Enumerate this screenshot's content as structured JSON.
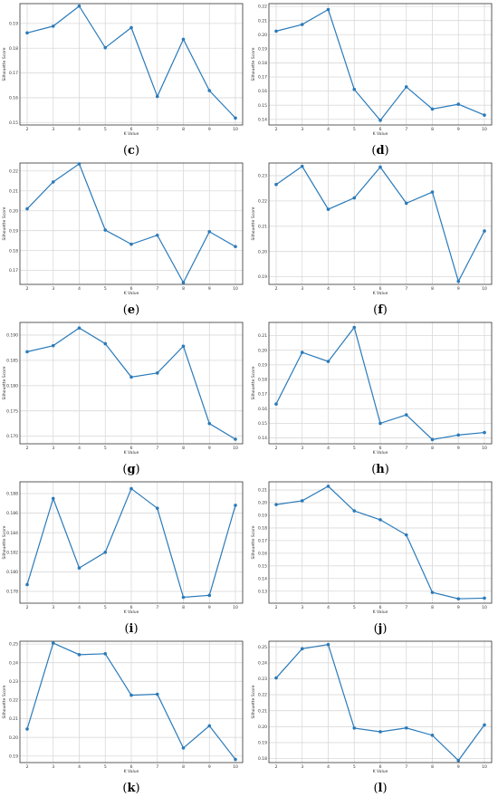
{
  "colors": {
    "series": "#2a7ab9",
    "grid": "#d9d9d9",
    "axis": "#333333"
  },
  "chart_data": [
    {
      "type": "line",
      "caption": "(c)",
      "xlabel": "K Value",
      "ylabel": "Silhouette Score",
      "x": [
        2,
        3,
        4,
        5,
        6,
        7,
        8,
        9,
        10
      ],
      "xticks": [
        "2",
        "3",
        "4",
        "5",
        "6",
        "7",
        "8",
        "9",
        "10"
      ],
      "ylim": [
        0.149,
        0.198
      ],
      "yticks": [
        0.15,
        0.16,
        0.17,
        0.18,
        0.19
      ],
      "yticklabels": [
        "0.15",
        "0.16",
        "0.17",
        "0.18",
        "0.19"
      ],
      "series": [
        {
          "values": [
            0.1862,
            0.1889,
            0.197,
            0.1802,
            0.1883,
            0.1605,
            0.1836,
            0.1629,
            0.1518
          ]
        }
      ]
    },
    {
      "type": "line",
      "caption": "(d)",
      "xlabel": "K Value",
      "ylabel": "Silhouette Score",
      "x": [
        2,
        3,
        4,
        5,
        6,
        7,
        8,
        9,
        10
      ],
      "xticks": [
        "2",
        "3",
        "4",
        "5",
        "6",
        "7",
        "8",
        "9",
        "10"
      ],
      "ylim": [
        0.136,
        0.222
      ],
      "yticks": [
        0.14,
        0.15,
        0.16,
        0.17,
        0.18,
        0.19,
        0.2,
        0.21,
        0.22
      ],
      "yticklabels": [
        "0.14",
        "0.15",
        "0.16",
        "0.17",
        "0.18",
        "0.19",
        "0.20",
        "0.21",
        "0.22"
      ],
      "series": [
        {
          "values": [
            0.2025,
            0.2072,
            0.2178,
            0.1612,
            0.1393,
            0.163,
            0.1473,
            0.1507,
            0.143
          ]
        }
      ]
    },
    {
      "type": "line",
      "caption": "(e)",
      "xlabel": "K Value",
      "ylabel": "Silhouette Score",
      "x": [
        2,
        3,
        4,
        5,
        6,
        7,
        8,
        9,
        10
      ],
      "xticks": [
        "2",
        "3",
        "4",
        "5",
        "6",
        "7",
        "8",
        "9",
        "10"
      ],
      "ylim": [
        0.163,
        0.224
      ],
      "yticks": [
        0.17,
        0.18,
        0.19,
        0.2,
        0.21,
        0.22
      ],
      "yticklabels": [
        "0.17",
        "0.18",
        "0.19",
        "0.20",
        "0.21",
        "0.22"
      ],
      "series": [
        {
          "values": [
            0.201,
            0.2145,
            0.2236,
            0.1903,
            0.1832,
            0.1877,
            0.1639,
            0.1895,
            0.182
          ]
        }
      ]
    },
    {
      "type": "line",
      "caption": "(f)",
      "xlabel": "K Value",
      "ylabel": "Silhouette Score",
      "x": [
        2,
        3,
        4,
        5,
        6,
        7,
        8,
        9,
        10
      ],
      "xticks": [
        "2",
        "3",
        "4",
        "5",
        "6",
        "7",
        "8",
        "9",
        "10"
      ],
      "ylim": [
        0.187,
        0.235
      ],
      "yticks": [
        0.19,
        0.2,
        0.21,
        0.22,
        0.23
      ],
      "yticklabels": [
        "0.19",
        "0.20",
        "0.21",
        "0.22",
        "0.23"
      ],
      "series": [
        {
          "values": [
            0.2265,
            0.2337,
            0.2167,
            0.2212,
            0.2334,
            0.2191,
            0.2235,
            0.1882,
            0.2081
          ]
        }
      ]
    },
    {
      "type": "line",
      "caption": "(g)",
      "xlabel": "K Value",
      "ylabel": "Silhouette Score",
      "x": [
        2,
        3,
        4,
        5,
        6,
        7,
        8,
        9,
        10
      ],
      "xticks": [
        "2",
        "3",
        "4",
        "5",
        "6",
        "7",
        "8",
        "9",
        "10"
      ],
      "ylim": [
        0.1685,
        0.1925
      ],
      "yticks": [
        0.17,
        0.175,
        0.18,
        0.185,
        0.19
      ],
      "yticklabels": [
        "0.170",
        "0.175",
        "0.180",
        "0.185",
        "0.190"
      ],
      "series": [
        {
          "values": [
            0.1867,
            0.1879,
            0.1914,
            0.1883,
            0.1817,
            0.1825,
            0.1878,
            0.1725,
            0.1694
          ]
        }
      ]
    },
    {
      "type": "line",
      "caption": "(h)",
      "xlabel": "K Value",
      "ylabel": "Silhouette Score",
      "x": [
        2,
        3,
        4,
        5,
        6,
        7,
        8,
        9,
        10
      ],
      "xticks": [
        "2",
        "3",
        "4",
        "5",
        "6",
        "7",
        "8",
        "9",
        "10"
      ],
      "ylim": [
        0.136,
        0.219
      ],
      "yticks": [
        0.14,
        0.15,
        0.16,
        0.17,
        0.18,
        0.19,
        0.2,
        0.21
      ],
      "yticklabels": [
        "0.14",
        "0.15",
        "0.16",
        "0.17",
        "0.18",
        "0.19",
        "0.20",
        "0.21"
      ],
      "series": [
        {
          "values": [
            0.1632,
            0.1985,
            0.1923,
            0.2156,
            0.15,
            0.1558,
            0.1389,
            0.142,
            0.1437
          ]
        }
      ]
    },
    {
      "type": "line",
      "caption": "(i)",
      "xlabel": "K Value",
      "ylabel": "Silhouette Score",
      "x": [
        2,
        3,
        4,
        5,
        6,
        7,
        8,
        9,
        10
      ],
      "xticks": [
        "2",
        "3",
        "4",
        "5",
        "6",
        "7",
        "8",
        "9",
        "10"
      ],
      "ylim": [
        0.1768,
        0.1892
      ],
      "yticks": [
        0.178,
        0.18,
        0.182,
        0.184,
        0.186,
        0.188
      ],
      "yticklabels": [
        "0.178",
        "0.180",
        "0.182",
        "0.184",
        "0.186",
        "0.188"
      ],
      "series": [
        {
          "values": [
            0.1787,
            0.1875,
            0.1804,
            0.182,
            0.1885,
            0.1865,
            0.1774,
            0.1776,
            0.1868
          ]
        }
      ]
    },
    {
      "type": "line",
      "caption": "(j)",
      "xlabel": "K Value",
      "ylabel": "Silhouette Score",
      "x": [
        2,
        3,
        4,
        5,
        6,
        7,
        8,
        9,
        10
      ],
      "xticks": [
        "2",
        "3",
        "4",
        "5",
        "6",
        "7",
        "8",
        "9",
        "10"
      ],
      "ylim": [
        0.1205,
        0.2165
      ],
      "yticks": [
        0.13,
        0.14,
        0.15,
        0.16,
        0.17,
        0.18,
        0.19,
        0.2,
        0.21
      ],
      "yticklabels": [
        "0.13",
        "0.14",
        "0.15",
        "0.16",
        "0.17",
        "0.18",
        "0.19",
        "0.20",
        "0.21"
      ],
      "series": [
        {
          "values": [
            0.1985,
            0.2015,
            0.213,
            0.1935,
            0.1865,
            0.1745,
            0.129,
            0.124,
            0.1245
          ]
        }
      ]
    },
    {
      "type": "line",
      "caption": "(k)",
      "xlabel": "K Value",
      "ylabel": "Silhouette Score",
      "x": [
        2,
        3,
        4,
        5,
        6,
        7,
        8,
        9,
        10
      ],
      "xticks": [
        "2",
        "3",
        "4",
        "5",
        "6",
        "7",
        "8",
        "9",
        "10"
      ],
      "ylim": [
        0.1865,
        0.2515
      ],
      "yticks": [
        0.19,
        0.2,
        0.21,
        0.22,
        0.23,
        0.24,
        0.25
      ],
      "yticklabels": [
        "0.19",
        "0.20",
        "0.21",
        "0.22",
        "0.23",
        "0.24",
        "0.25"
      ],
      "series": [
        {
          "values": [
            0.2045,
            0.2505,
            0.2443,
            0.2448,
            0.2226,
            0.2231,
            0.1943,
            0.2062,
            0.1882
          ]
        }
      ]
    },
    {
      "type": "line",
      "caption": "(l)",
      "xlabel": "K Value",
      "ylabel": "Silhouette Score",
      "x": [
        2,
        3,
        4,
        5,
        6,
        7,
        8,
        9,
        10
      ],
      "xticks": [
        "2",
        "3",
        "4",
        "5",
        "6",
        "7",
        "8",
        "9",
        "10"
      ],
      "ylim": [
        0.1775,
        0.2535
      ],
      "yticks": [
        0.18,
        0.19,
        0.2,
        0.21,
        0.22,
        0.23,
        0.24,
        0.25
      ],
      "yticklabels": [
        "0.18",
        "0.19",
        "0.20",
        "0.21",
        "0.22",
        "0.23",
        "0.24",
        "0.25"
      ],
      "series": [
        {
          "values": [
            0.2305,
            0.2488,
            0.2514,
            0.1991,
            0.1968,
            0.1992,
            0.1946,
            0.1788,
            0.2011
          ]
        }
      ]
    }
  ]
}
